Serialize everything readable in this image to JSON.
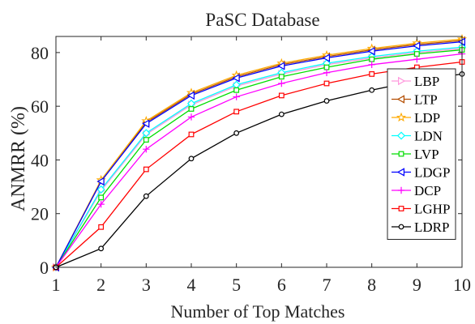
{
  "chart_data": {
    "type": "line",
    "title": "PaSC Database",
    "xlabel": "Number of Top Matches",
    "ylabel": "ANMRR (%)",
    "x": [
      1,
      2,
      3,
      4,
      5,
      6,
      7,
      8,
      9,
      10
    ],
    "xlim": [
      1,
      10
    ],
    "ylim": [
      0,
      86
    ],
    "xticks": [
      1,
      2,
      3,
      4,
      5,
      6,
      7,
      8,
      9,
      10
    ],
    "yticks": [
      0,
      20,
      40,
      60,
      80
    ],
    "grid": false,
    "legend_position": "right",
    "series": [
      {
        "name": "LBP",
        "color": "#ff99dd",
        "marker": "triangle-right",
        "values": [
          0,
          28.5,
          49.5,
          60.5,
          67.5,
          72,
          75.5,
          78,
          80,
          81.5
        ]
      },
      {
        "name": "LTP",
        "color": "#b34d00",
        "marker": "triangle-left",
        "values": [
          0,
          32,
          54,
          64.5,
          71,
          75.5,
          78.5,
          81,
          83,
          84.5
        ]
      },
      {
        "name": "LDP",
        "color": "#ffaa00",
        "marker": "star",
        "values": [
          0,
          32.5,
          54.5,
          65,
          71.5,
          76,
          79,
          81.5,
          83.5,
          85
        ]
      },
      {
        "name": "LDN",
        "color": "#00ffff",
        "marker": "diamond",
        "values": [
          0,
          29,
          50,
          61,
          68,
          72.5,
          76,
          78.5,
          80.5,
          82
        ]
      },
      {
        "name": "LVP",
        "color": "#00dd00",
        "marker": "square",
        "values": [
          0,
          26,
          47.5,
          59,
          66,
          71,
          74.5,
          77.5,
          79.5,
          81
        ]
      },
      {
        "name": "LDGP",
        "color": "#0000ff",
        "marker": "triangle-left",
        "values": [
          0,
          32,
          53.5,
          64,
          70.5,
          75,
          78,
          80.5,
          82.5,
          84
        ]
      },
      {
        "name": "DCP",
        "color": "#ff00ff",
        "marker": "plus",
        "values": [
          0,
          23.5,
          44,
          56,
          63.5,
          68.5,
          72.5,
          75.5,
          77.5,
          79.5
        ]
      },
      {
        "name": "LGHP",
        "color": "#ff0000",
        "marker": "square",
        "values": [
          0,
          15,
          36.5,
          49.5,
          58,
          64,
          68.5,
          72,
          74.5,
          76.5
        ]
      },
      {
        "name": "LDRP",
        "color": "#000000",
        "marker": "circle",
        "values": [
          0,
          7,
          26.5,
          40.5,
          50,
          57,
          62,
          66,
          69.5,
          72
        ]
      }
    ]
  }
}
